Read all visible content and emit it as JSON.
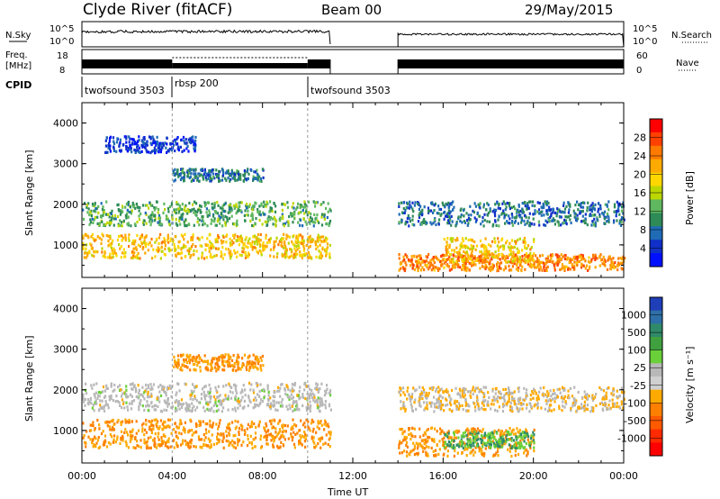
{
  "header": {
    "site": "Clyde River (fitACF)",
    "beam": "Beam 00",
    "date": "29/May/2015"
  },
  "panels": {
    "noise": {
      "left_label": "N.Sky",
      "right_label": "N.Search",
      "left_ticks": [
        "10^5",
        "10^0"
      ],
      "right_ticks": [
        "10^5",
        "10^0"
      ]
    },
    "freq": {
      "left_label_1": "Freq.",
      "left_label_2": "[MHz]",
      "right_label": "Nave",
      "left_ticks": [
        "18",
        "8"
      ],
      "right_ticks": [
        "60",
        "0"
      ]
    },
    "cpid": {
      "label": "CPID",
      "segments": [
        "twofsound 3503",
        "rbsp 200",
        "twofsound 3503"
      ]
    }
  },
  "colorbars": {
    "power": {
      "label": "Power [dB]",
      "ticks": [
        "28",
        "24",
        "20",
        "16",
        "12",
        "8",
        "4"
      ],
      "colors": [
        "#ff0000",
        "#ff4000",
        "#ff7a00",
        "#ffaa00",
        "#ffd700",
        "#bcd600",
        "#5fb85f",
        "#2e8b57",
        "#1f6bb5",
        "#1030c8",
        "#0010ff"
      ]
    },
    "velocity": {
      "label": "Velocity [m s⁻¹]",
      "ticks": [
        "1000",
        "500",
        "100",
        "25",
        "-25",
        "-100",
        "-500",
        "-1000"
      ],
      "colors": [
        "#1f3fb8",
        "#2e6fa8",
        "#2f8a6a",
        "#40a040",
        "#6ad03a",
        "#b8b8b8",
        "#d0d0d0",
        "#ffaa00",
        "#ff8000",
        "#ff5a00",
        "#ff2a00",
        "#ff0000"
      ]
    }
  },
  "chart_data": [
    {
      "type": "heatmap",
      "title": "",
      "xlabel": "",
      "ylabel": "Slant Range [km]",
      "xlim": [
        0,
        24
      ],
      "ylim": [
        200,
        4500
      ],
      "xticks": [
        "00:00",
        "04:00",
        "08:00",
        "12:00",
        "16:00",
        "20:00",
        "00:00"
      ],
      "yticks": [
        1000,
        2000,
        3000,
        4000
      ],
      "variable": "Power [dB]",
      "data_gap_hours": [
        11.0,
        14.0
      ],
      "bands": [
        {
          "t_start": 0.0,
          "t_end": 11.0,
          "r_min": 700,
          "r_max": 1300,
          "level": 20
        },
        {
          "t_start": 0.0,
          "t_end": 11.0,
          "r_min": 1500,
          "r_max": 2100,
          "level": 12
        },
        {
          "t_start": 4.0,
          "t_end": 8.0,
          "r_min": 2600,
          "r_max": 2900,
          "level": 8
        },
        {
          "t_start": 1.0,
          "t_end": 5.0,
          "r_min": 3300,
          "r_max": 3700,
          "level": 4
        },
        {
          "t_start": 14.0,
          "t_end": 24.0,
          "r_min": 400,
          "r_max": 800,
          "level": 24
        },
        {
          "t_start": 16.0,
          "t_end": 20.0,
          "r_min": 600,
          "r_max": 1200,
          "level": 20
        },
        {
          "t_start": 14.0,
          "t_end": 24.0,
          "r_min": 1500,
          "r_max": 2100,
          "level": 8
        }
      ]
    },
    {
      "type": "heatmap",
      "title": "",
      "xlabel": "Time UT",
      "ylabel": "Slant Range [km]",
      "xlim": [
        0,
        24
      ],
      "ylim": [
        200,
        4500
      ],
      "xticks": [
        "00:00",
        "04:00",
        "08:00",
        "12:00",
        "16:00",
        "20:00",
        "00:00"
      ],
      "yticks": [
        1000,
        2000,
        3000,
        4000
      ],
      "variable": "Velocity [m s-1]",
      "data_gap_hours": [
        11.0,
        14.0
      ],
      "bands": [
        {
          "t_start": 0.0,
          "t_end": 11.0,
          "r_min": 600,
          "r_max": 1300,
          "level": -100
        },
        {
          "t_start": 0.0,
          "t_end": 11.0,
          "r_min": 1500,
          "r_max": 2200,
          "level": 0
        },
        {
          "t_start": 4.0,
          "t_end": 8.0,
          "r_min": 2500,
          "r_max": 2900,
          "level": -100
        },
        {
          "t_start": 14.0,
          "t_end": 20.0,
          "r_min": 400,
          "r_max": 1100,
          "level": -100
        },
        {
          "t_start": 16.0,
          "t_end": 20.0,
          "r_min": 600,
          "r_max": 1000,
          "level": 100
        },
        {
          "t_start": 14.0,
          "t_end": 24.0,
          "r_min": 1500,
          "r_max": 2100,
          "level": -25
        }
      ]
    }
  ]
}
